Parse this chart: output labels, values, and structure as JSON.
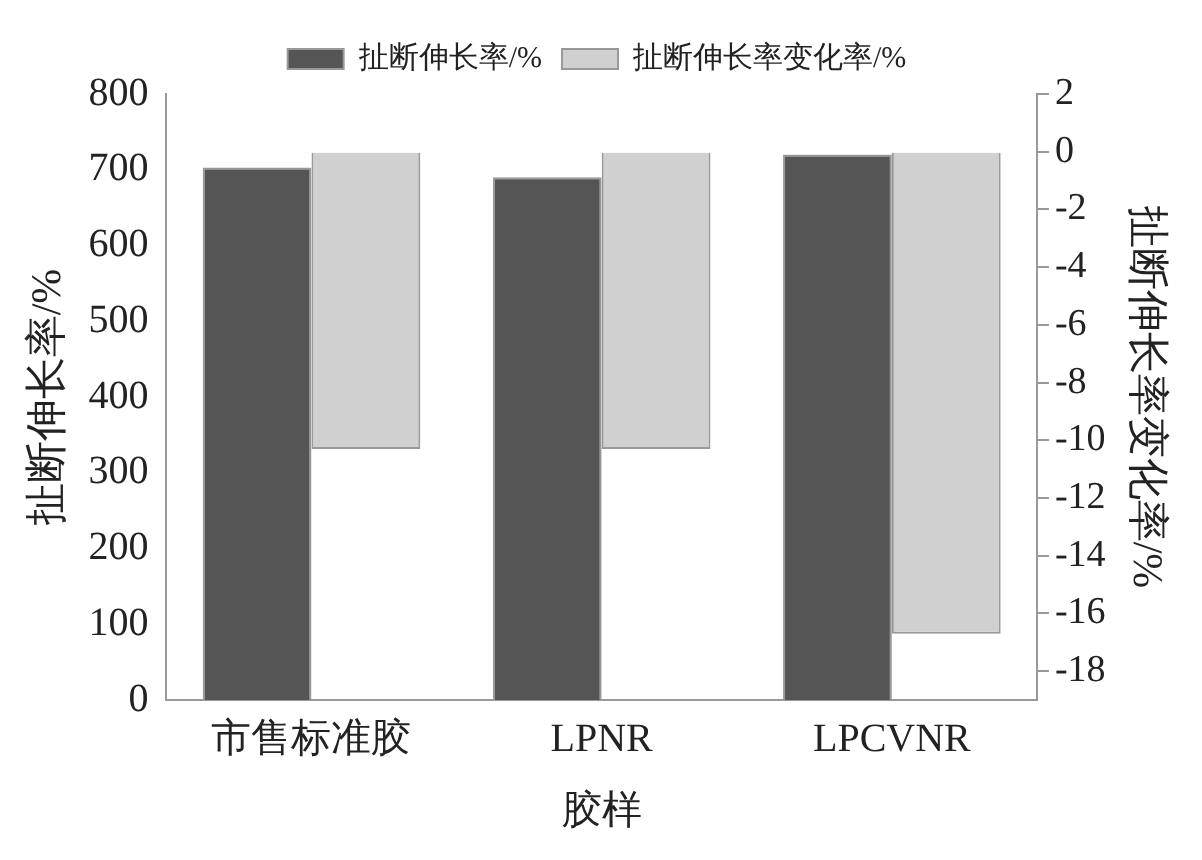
{
  "chart_data": {
    "type": "bar",
    "xlabel": "胶样",
    "ylabel": "扯断伸长率/%",
    "y2label": "扯断伸长率变化率/%",
    "categories": [
      "市售标准胶",
      "LPNR",
      "LPCVNR"
    ],
    "series": [
      {
        "name": "扯断伸长率/%",
        "color": "#555555",
        "values": [
          703,
          690,
          720
        ]
      },
      {
        "name": "扯断伸长率变化率/%",
        "color": "#d0d0d0",
        "values": [
          -10.3,
          -10.3,
          -16.7
        ],
        "axis": "y2"
      }
    ],
    "ylim": [
      0,
      800
    ],
    "yticks": [
      0,
      100,
      200,
      300,
      400,
      500,
      600,
      700,
      800
    ],
    "y2lim": [
      -19,
      2
    ],
    "y2ticks": [
      2,
      0,
      -2,
      -4,
      -6,
      -8,
      -10,
      -12,
      -14,
      -16,
      -18
    ],
    "legend": "top",
    "grid": false
  }
}
